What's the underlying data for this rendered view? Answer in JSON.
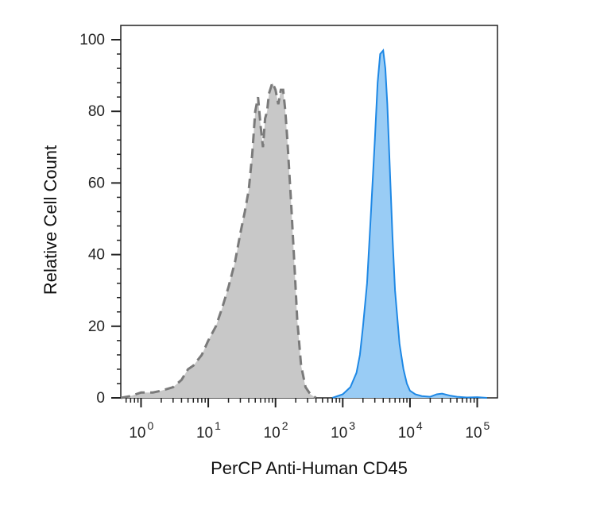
{
  "chart_data": {
    "type": "area",
    "title": "",
    "xlabel": "PerCP Anti-Human CD45",
    "ylabel": "Relative Cell Count",
    "xscale": "log",
    "xlim": [
      0.5,
      200000
    ],
    "ylim": [
      0,
      100
    ],
    "x_ticks": [
      {
        "base": "10",
        "exp": "0",
        "value": 1
      },
      {
        "base": "10",
        "exp": "1",
        "value": 10
      },
      {
        "base": "10",
        "exp": "2",
        "value": 100
      },
      {
        "base": "10",
        "exp": "3",
        "value": 1000
      },
      {
        "base": "10",
        "exp": "4",
        "value": 10000
      },
      {
        "base": "10",
        "exp": "5",
        "value": 100000
      }
    ],
    "y_ticks": [
      "0",
      "20",
      "40",
      "60",
      "80",
      "100"
    ],
    "grid": false,
    "series": [
      {
        "color": "#c8c8c8",
        "stroke": "#7a7a7a",
        "dashed": true,
        "x": [
          0.5,
          0.7,
          1,
          1.5,
          2,
          3,
          4,
          5,
          6,
          8,
          10,
          13,
          16,
          20,
          25,
          30,
          35,
          40,
          45,
          50,
          55,
          60,
          65,
          70,
          75,
          80,
          90,
          100,
          110,
          120,
          130,
          140,
          150,
          170,
          190,
          210,
          240,
          280,
          330,
          400
        ],
        "y": [
          0,
          0.5,
          1.5,
          1.5,
          2,
          3,
          5,
          8,
          9,
          12,
          16,
          20,
          25,
          31,
          38,
          46,
          52,
          58,
          68,
          80,
          84,
          76,
          70,
          78,
          80,
          85,
          88,
          86,
          82,
          86,
          86,
          80,
          72,
          55,
          38,
          22,
          9,
          3,
          1,
          0
        ]
      },
      {
        "color": "#99ccf5",
        "stroke": "#1e88e5",
        "dashed": false,
        "x": [
          700,
          1000,
          1300,
          1600,
          1800,
          2000,
          2300,
          2600,
          3000,
          3300,
          3600,
          4000,
          4300,
          4600,
          5000,
          5500,
          6000,
          7000,
          8000,
          9000,
          10000,
          12000,
          15000,
          20000,
          25000,
          30000,
          40000,
          50000,
          70000,
          100000,
          140000
        ],
        "y": [
          0,
          1,
          3,
          7,
          12,
          20,
          32,
          50,
          72,
          88,
          96,
          97,
          92,
          82,
          65,
          45,
          30,
          15,
          8,
          4,
          2,
          1,
          0.5,
          0.3,
          1,
          1.2,
          0.6,
          0.3,
          0.1,
          0.2,
          0
        ]
      }
    ]
  }
}
